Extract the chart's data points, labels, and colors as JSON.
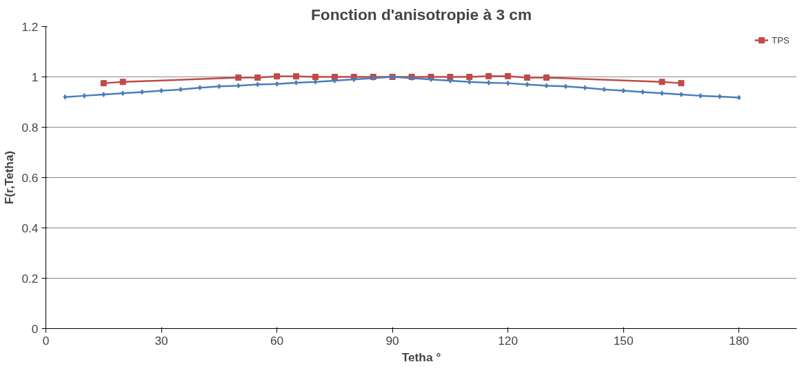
{
  "chart_data": {
    "type": "line",
    "title": "Fonction d'anisotropie à 3 cm",
    "xlabel": "Tetha °",
    "ylabel": "F(r,Tetha)",
    "series": [
      {
        "color": "#4a7ebb",
        "marker": "diamond",
        "x": [
          5,
          10,
          15,
          20,
          25,
          30,
          35,
          40,
          45,
          50,
          55,
          60,
          65,
          70,
          75,
          80,
          85,
          90,
          95,
          100,
          105,
          110,
          115,
          120,
          125,
          130,
          135,
          140,
          145,
          150,
          155,
          160,
          165,
          170,
          175,
          180
        ],
        "values": [
          0.92,
          0.925,
          0.93,
          0.935,
          0.94,
          0.945,
          0.95,
          0.957,
          0.962,
          0.965,
          0.97,
          0.972,
          0.977,
          0.98,
          0.985,
          0.99,
          0.995,
          1.0,
          0.995,
          0.99,
          0.985,
          0.98,
          0.977,
          0.975,
          0.97,
          0.965,
          0.962,
          0.957,
          0.95,
          0.945,
          0.94,
          0.935,
          0.93,
          0.925,
          0.922,
          0.918
        ]
      },
      {
        "name": "TPS",
        "color": "#be4b48",
        "marker": "square",
        "x": [
          15,
          20,
          50,
          55,
          60,
          65,
          70,
          75,
          80,
          85,
          90,
          95,
          100,
          105,
          110,
          115,
          120,
          125,
          130,
          160,
          165
        ],
        "values": [
          0.975,
          0.98,
          0.997,
          0.997,
          1.002,
          1.002,
          1.0,
          1.0,
          1.0,
          1.0,
          1.0,
          1.0,
          1.0,
          1.0,
          1.0,
          1.003,
          1.003,
          0.997,
          0.997,
          0.98,
          0.975
        ]
      }
    ],
    "xlim": [
      0,
      195
    ],
    "xticks": [
      0,
      30,
      60,
      90,
      120,
      150,
      180
    ],
    "ylim": [
      0,
      1.2
    ],
    "yticks": [
      0,
      0.2,
      0.4,
      0.6,
      0.8,
      1,
      1.2
    ],
    "grid": "y",
    "legend": "top right",
    "line_style": "solid"
  }
}
